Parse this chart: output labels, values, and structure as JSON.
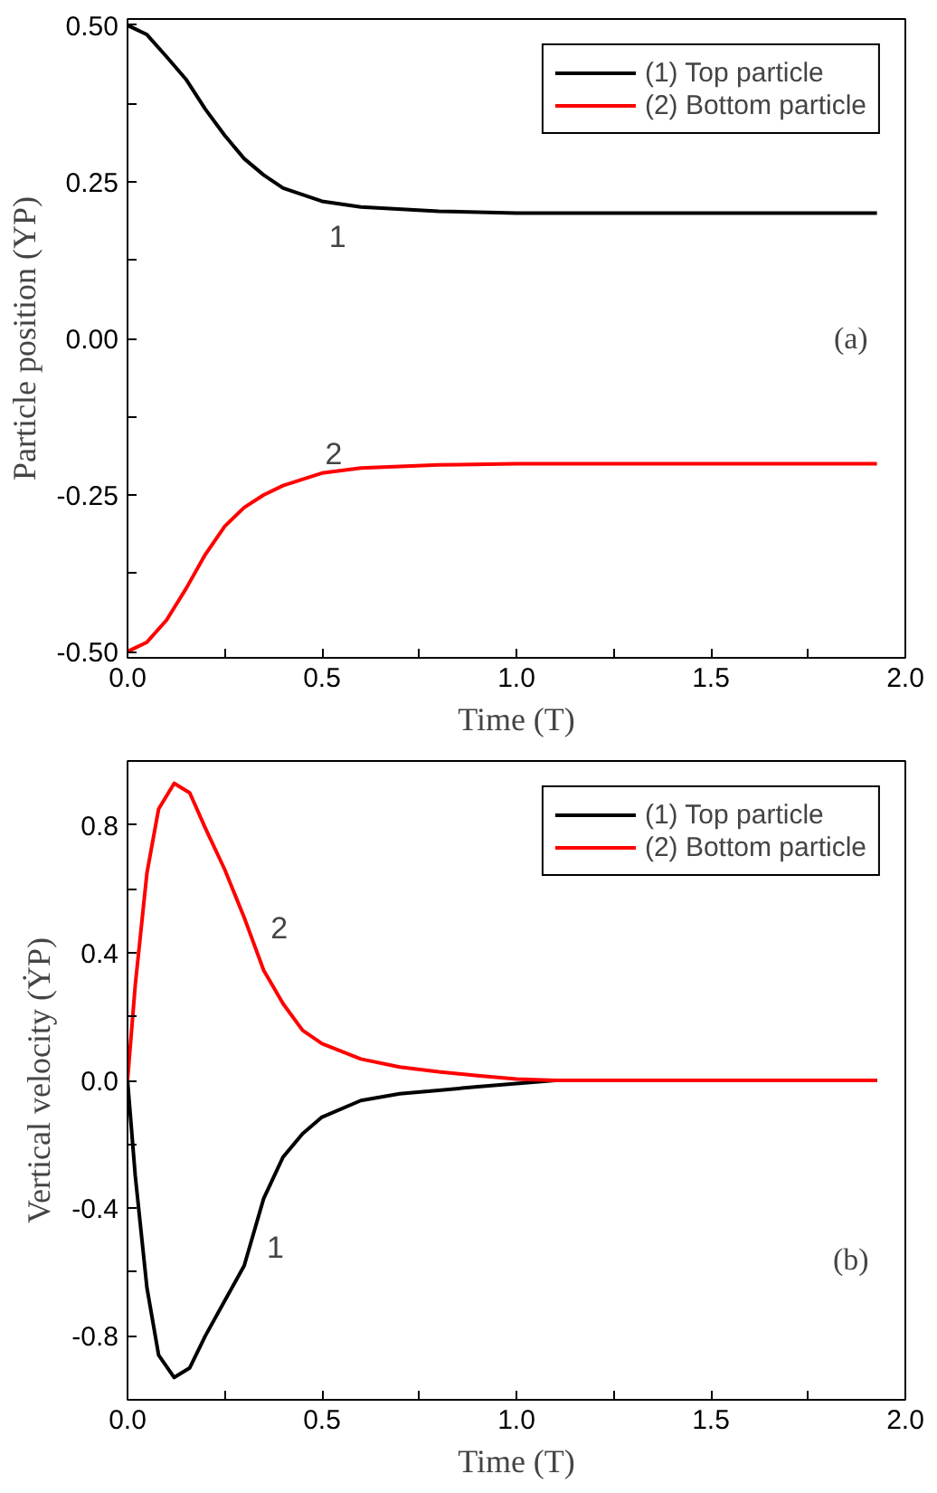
{
  "chart_data": [
    {
      "type": "line",
      "xlabel": "Time (T)",
      "ylabel": "Particle position (YP)",
      "xlim": [
        0,
        2
      ],
      "ylim": [
        -0.51,
        0.51
      ],
      "xticks": [
        {
          "value": 0,
          "label": "0.0"
        },
        {
          "value": 0.25,
          "label": null
        },
        {
          "value": 0.5,
          "label": "0.5"
        },
        {
          "value": 0.75,
          "label": null
        },
        {
          "value": 1,
          "label": "1.0"
        },
        {
          "value": 1.25,
          "label": null
        },
        {
          "value": 1.5,
          "label": "1.5"
        },
        {
          "value": 1.75,
          "label": null
        },
        {
          "value": 2,
          "label": "2.0"
        }
      ],
      "yticks": [
        {
          "value": -0.5,
          "label": "-0.50"
        },
        {
          "value": -0.375,
          "label": null
        },
        -0.25,
        {
          "value": -0.125,
          "label": null
        },
        {
          "value": 0,
          "label": "0.00"
        },
        {
          "value": 0.125,
          "label": null
        },
        0.25,
        {
          "value": 0.375,
          "label": null
        },
        {
          "value": 0.5,
          "label": "0.50"
        }
      ],
      "grid": false,
      "legend": "top right",
      "x": [
        0,
        0.05,
        0.1,
        0.15,
        0.2,
        0.25,
        0.3,
        0.35,
        0.4,
        0.5,
        0.6,
        0.8,
        1.0,
        1.2,
        1.5,
        1.927
      ],
      "series": [
        {
          "name": "(1) Top particle",
          "color": "#000000",
          "values": [
            0.5,
            0.485,
            0.45,
            0.414,
            0.366,
            0.324,
            0.287,
            0.261,
            0.24,
            0.219,
            0.21,
            0.203,
            0.2,
            0.2,
            0.2,
            0.2
          ]
        },
        {
          "name": "(2) Bottom particle",
          "color": "#ff0000",
          "values": [
            -0.5,
            -0.485,
            -0.45,
            -0.4,
            -0.345,
            -0.3,
            -0.27,
            -0.25,
            -0.235,
            -0.215,
            -0.207,
            -0.202,
            -0.2,
            -0.2,
            -0.2,
            -0.2
          ]
        }
      ],
      "annotations": [
        "1",
        "2",
        "(a)"
      ]
    },
    {
      "type": "line",
      "xlabel": "Time (T)",
      "ylabel": "Vertical velocity (ẎP)",
      "xlim": [
        0,
        2
      ],
      "ylim": [
        -1,
        1
      ],
      "xticks": [
        {
          "value": 0,
          "label": "0.0"
        },
        {
          "value": 0.25,
          "label": null
        },
        {
          "value": 0.5,
          "label": "0.5"
        },
        {
          "value": 0.75,
          "label": null
        },
        {
          "value": 1,
          "label": "1.0"
        },
        {
          "value": 1.25,
          "label": null
        },
        {
          "value": 1.5,
          "label": "1.5"
        },
        {
          "value": 1.75,
          "label": null
        },
        {
          "value": 2,
          "label": "2.0"
        }
      ],
      "yticks": [
        -0.8,
        {
          "value": -0.6,
          "label": null
        },
        -0.4,
        {
          "value": -0.2,
          "label": null
        },
        {
          "value": 0,
          "label": "0.0"
        },
        {
          "value": 0.2,
          "label": null
        },
        0.4,
        {
          "value": 0.6,
          "label": null
        },
        0.8
      ],
      "grid": false,
      "legend": "top right",
      "x": [
        0,
        0.02,
        0.05,
        0.08,
        0.12,
        0.16,
        0.2,
        0.25,
        0.3,
        0.35,
        0.4,
        0.45,
        0.5,
        0.6,
        0.7,
        0.8,
        0.9,
        1.0,
        1.1,
        1.5,
        1.927
      ],
      "series": [
        {
          "name": "(1) Top particle",
          "color": "#000000",
          "values": [
            0,
            -0.3,
            -0.65,
            -0.86,
            -0.93,
            -0.9,
            -0.8,
            -0.69,
            -0.58,
            -0.37,
            -0.24,
            -0.167,
            -0.115,
            -0.063,
            -0.042,
            -0.031,
            -0.02,
            -0.01,
            0,
            0,
            0
          ]
        },
        {
          "name": "(2) Bottom particle",
          "color": "#ff0000",
          "values": [
            0,
            0.3,
            0.65,
            0.85,
            0.93,
            0.9,
            0.79,
            0.66,
            0.51,
            0.345,
            0.24,
            0.157,
            0.115,
            0.067,
            0.042,
            0.027,
            0.015,
            0.004,
            0,
            0,
            0
          ]
        }
      ],
      "annotations": [
        "2",
        "1",
        "(b)"
      ]
    }
  ]
}
